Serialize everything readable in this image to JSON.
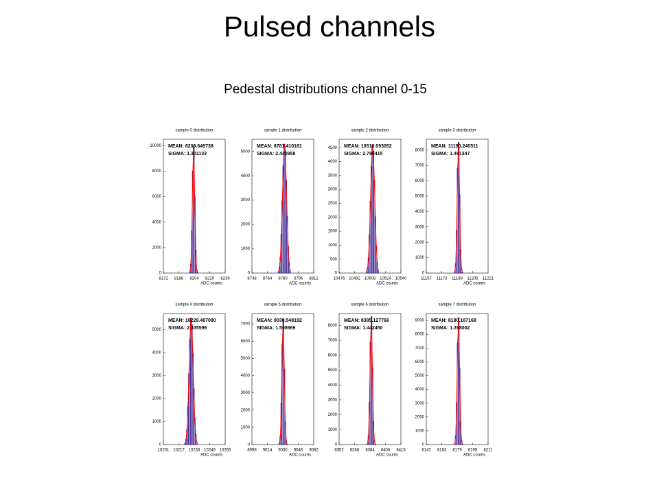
{
  "title": "Pulsed channels",
  "subtitle": "Pedestal distributions channel 0-15",
  "chart_data": [
    {
      "type": "histogram",
      "title": "sample 0 distribution",
      "x_label": "ADC counts",
      "stats": [
        "MEAN: 8203.649738",
        "SIGMA: 1.301133"
      ],
      "color": "#3a1f8f",
      "bins": [
        8199,
        8200,
        8201,
        8202,
        8203,
        8204,
        8205,
        8206,
        8207,
        8208
      ],
      "values": [
        100,
        700,
        3300,
        8000,
        10000,
        6000,
        1800,
        300,
        30
      ],
      "fit": {
        "color": "#ff0000",
        "values": [
          100,
          700,
          3300,
          8000,
          10000,
          6000,
          1800,
          300,
          30
        ]
      },
      "xlim": [
        8172,
        8236
      ],
      "xticks": [
        8172,
        8188,
        8204,
        8220,
        8236
      ],
      "ylim": [
        0,
        10500
      ],
      "yticks": [
        0,
        2000,
        4000,
        6000,
        8000,
        10000
      ]
    },
    {
      "type": "histogram",
      "title": "sample 1 distribution",
      "x_label": "ADC counts",
      "stats": [
        "MEAN: 8781.410181",
        "SIGMA: 2.440958"
      ],
      "color": "#3a1f8f",
      "bins": [
        8775,
        8776,
        8777,
        8778,
        8779,
        8780,
        8781,
        8782,
        8783,
        8784,
        8785,
        8786,
        8787,
        8788
      ],
      "values": [
        50,
        210,
        640,
        1590,
        2970,
        4400,
        5300,
        5040,
        3820,
        2330,
        1110,
        420,
        110
      ],
      "fit": {
        "color": "#ff0000",
        "values": [
          50,
          210,
          640,
          1590,
          2970,
          4400,
          5300,
          5040,
          3820,
          2330,
          1110,
          420,
          110
        ]
      },
      "xlim": [
        8748,
        8812
      ],
      "xticks": [
        8748,
        8764,
        8780,
        8796,
        8812
      ],
      "ylim": [
        0,
        5500
      ],
      "yticks": [
        0,
        1000,
        2000,
        3000,
        4000,
        5000
      ]
    },
    {
      "type": "histogram",
      "title": "sample 2 distribution",
      "x_label": "ADC counts",
      "stats": [
        "MEAN: 10510.093052",
        "SIGMA: 2.796415"
      ],
      "color": "#3a1f8f",
      "bins": [
        10504,
        10505,
        10506,
        10507,
        10508,
        10509,
        10510,
        10511,
        10512,
        10513,
        10514,
        10515,
        10516,
        10517
      ],
      "values": [
        46,
        180,
        550,
        1380,
        2580,
        3820,
        4600,
        4370,
        3310,
        2020,
        970,
        370,
        90
      ],
      "fit": {
        "color": "#ff0000",
        "values": [
          46,
          180,
          550,
          1380,
          2580,
          3820,
          4600,
          4370,
          3310,
          2020,
          970,
          370,
          90
        ]
      },
      "xlim": [
        10476,
        10540
      ],
      "xticks": [
        10476,
        10492,
        10508,
        10524,
        10540
      ],
      "ylim": [
        0,
        4800
      ],
      "yticks": [
        0,
        500,
        1000,
        1500,
        2000,
        2500,
        3000,
        3500,
        4000,
        4500
      ]
    },
    {
      "type": "histogram",
      "title": "sample 3 distribution",
      "x_label": "ADC counts",
      "stats": [
        "MEAN: 11190.240511",
        "SIGMA: 1.491347"
      ],
      "color": "#3a1f8f",
      "bins": [
        11186,
        11187,
        11188,
        11189,
        11190,
        11191,
        11192,
        11193,
        11194,
        11195
      ],
      "values": [
        85,
        600,
        2800,
        6800,
        8500,
        5100,
        1530,
        260,
        30
      ],
      "fit": {
        "color": "#ff0000",
        "values": [
          85,
          600,
          2800,
          6800,
          8500,
          5100,
          1530,
          260,
          30
        ]
      },
      "xlim": [
        11157,
        11221
      ],
      "xticks": [
        11157,
        11173,
        11189,
        11205,
        11221
      ],
      "ylim": [
        0,
        8700
      ],
      "yticks": [
        0,
        1000,
        2000,
        3000,
        4000,
        5000,
        6000,
        7000,
        8000
      ]
    },
    {
      "type": "histogram",
      "title": "sample 4 distribution",
      "x_label": "ADC counts",
      "stats": [
        "MEAN: 10229.487080",
        "SIGMA: 2.335596"
      ],
      "color": "#3a1f8f",
      "bins": [
        10223,
        10224,
        10225,
        10226,
        10227,
        10228,
        10229,
        10230,
        10231,
        10232,
        10233,
        10234,
        10235,
        10236
      ],
      "values": [
        55,
        220,
        660,
        1650,
        3080,
        4570,
        5500,
        5230,
        3960,
        2420,
        1160,
        440,
        110
      ],
      "fit": {
        "color": "#ff0000",
        "values": [
          55,
          220,
          660,
          1650,
          3080,
          4570,
          5500,
          5230,
          3960,
          2420,
          1160,
          440,
          110
        ]
      },
      "xlim": [
        10201,
        10265
      ],
      "xticks": [
        10201,
        10217,
        10233,
        10249,
        10265
      ],
      "ylim": [
        0,
        5700
      ],
      "yticks": [
        0,
        1000,
        2000,
        3000,
        4000,
        5000
      ]
    },
    {
      "type": "histogram",
      "title": "sample 5 distribution",
      "x_label": "ADC counts",
      "stats": [
        "MEAN: 9030.548192",
        "SIGMA: 1.508969"
      ],
      "color": "#3a1f8f",
      "bins": [
        9026,
        9027,
        9028,
        9029,
        9030,
        9031,
        9032,
        9033,
        9034,
        9035
      ],
      "values": [
        73,
        510,
        2410,
        5840,
        7300,
        4380,
        1310,
        220,
        20
      ],
      "fit": {
        "color": "#ff0000",
        "values": [
          73,
          510,
          2410,
          5840,
          7300,
          4380,
          1310,
          220,
          20
        ]
      },
      "xlim": [
        8998,
        9062
      ],
      "xticks": [
        8998,
        9014,
        9030,
        9046,
        9062
      ],
      "ylim": [
        0,
        7600
      ],
      "yticks": [
        0,
        1000,
        2000,
        3000,
        4000,
        5000,
        6000,
        7000
      ]
    },
    {
      "type": "histogram",
      "title": "sample 6 distribution",
      "x_label": "ADC counts",
      "stats": [
        "MEAN: 8385.127766",
        "SIGMA: 1.442450"
      ],
      "color": "#3a1f8f",
      "bins": [
        8381,
        8382,
        8383,
        8384,
        8385,
        8386,
        8387,
        8388,
        8389,
        8390
      ],
      "values": [
        86,
        600,
        2840,
        6880,
        8600,
        5160,
        1550,
        260,
        30
      ],
      "fit": {
        "color": "#ff0000",
        "values": [
          86,
          600,
          2840,
          6880,
          8600,
          5160,
          1550,
          260,
          30
        ]
      },
      "xlim": [
        8352,
        8416
      ],
      "xticks": [
        8352,
        8368,
        8384,
        8400,
        8416
      ],
      "ylim": [
        0,
        8800
      ],
      "yticks": [
        0,
        1000,
        2000,
        3000,
        4000,
        5000,
        6000,
        7000,
        8000
      ]
    },
    {
      "type": "histogram",
      "title": "sample 7 distribution",
      "x_label": "ADC counts",
      "stats": [
        "MEAN: 8180.187168",
        "SIGMA: 1.398002"
      ],
      "color": "#3a1f8f",
      "bins": [
        8176,
        8177,
        8178,
        8179,
        8180,
        8181,
        8182,
        8183,
        8184,
        8185
      ],
      "values": [
        92,
        640,
        3040,
        7360,
        9200,
        5520,
        1660,
        280,
        30
      ],
      "fit": {
        "color": "#ff0000",
        "values": [
          92,
          640,
          3040,
          7360,
          9200,
          5520,
          1660,
          280,
          30
        ]
      },
      "xlim": [
        8147,
        8211
      ],
      "xticks": [
        8147,
        8163,
        8179,
        8195,
        8211
      ],
      "ylim": [
        0,
        9500
      ],
      "yticks": [
        0,
        1000,
        2000,
        3000,
        4000,
        5000,
        6000,
        7000,
        8000,
        9000
      ]
    }
  ]
}
